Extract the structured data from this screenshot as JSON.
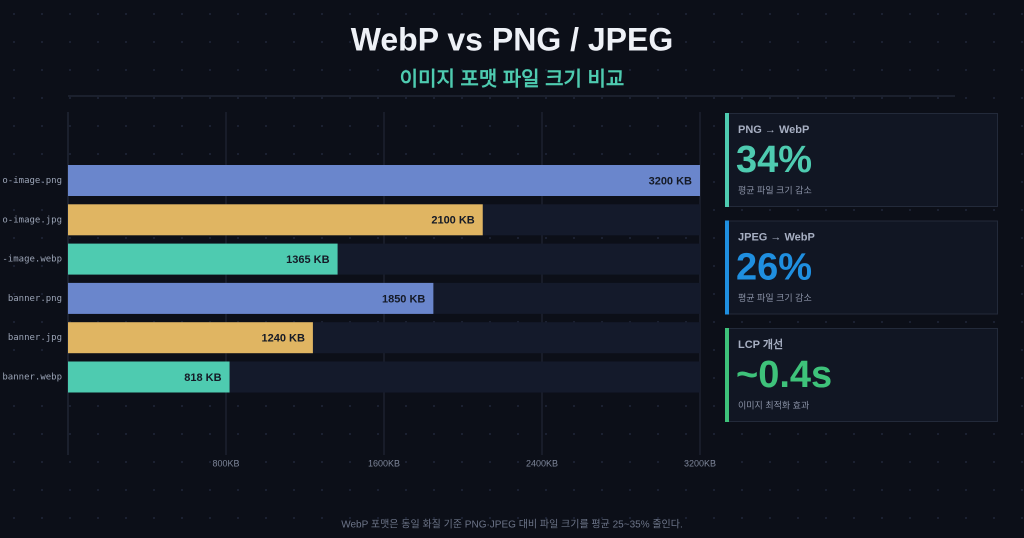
{
  "chart_data": {
    "type": "bar",
    "orientation": "horizontal",
    "title": "WebP vs PNG / JPEG",
    "subtitle": "이미지 포맷 파일 크기 비교",
    "categories": [
      "o-image.png",
      "o-image.jpg",
      "-image.webp",
      "banner.png",
      "banner.jpg",
      "banner.webp"
    ],
    "values": [
      3200,
      2100,
      1365,
      1850,
      1240,
      818
    ],
    "value_labels": [
      "3200 KB",
      "2100 KB",
      "1365 KB",
      "1850 KB",
      "1240 KB",
      "818 KB"
    ],
    "colors": [
      "#6a86cc",
      "#e0b562",
      "#4ecbb0",
      "#6a86cc",
      "#e0b562",
      "#4ecbb0"
    ],
    "xlim": [
      0,
      3200
    ],
    "xticks": [
      {
        "value": 800,
        "label": "800KB"
      },
      {
        "value": 1600,
        "label": "1600KB"
      },
      {
        "value": 2400,
        "label": "2400KB"
      },
      {
        "value": 3200,
        "label": "3200KB"
      }
    ],
    "grid": true
  },
  "cards": [
    {
      "label": "PNG → WebP",
      "value": "34%",
      "note": "평균 파일 크기 감소",
      "color": "#4ecbb0"
    },
    {
      "label": "JPEG → WebP",
      "value": "26%",
      "note": "평균 파일 크기 감소",
      "color": "#1f8fe0"
    },
    {
      "label": "LCP 개선",
      "value": "~0.4s",
      "note": "이미지 최적화 효과",
      "color": "#3ec27a"
    }
  ],
  "footer": "WebP 포맷은 동일 화질 기준 PNG·JPEG 대비 파일 크기를 평균 25~35% 줄인다."
}
